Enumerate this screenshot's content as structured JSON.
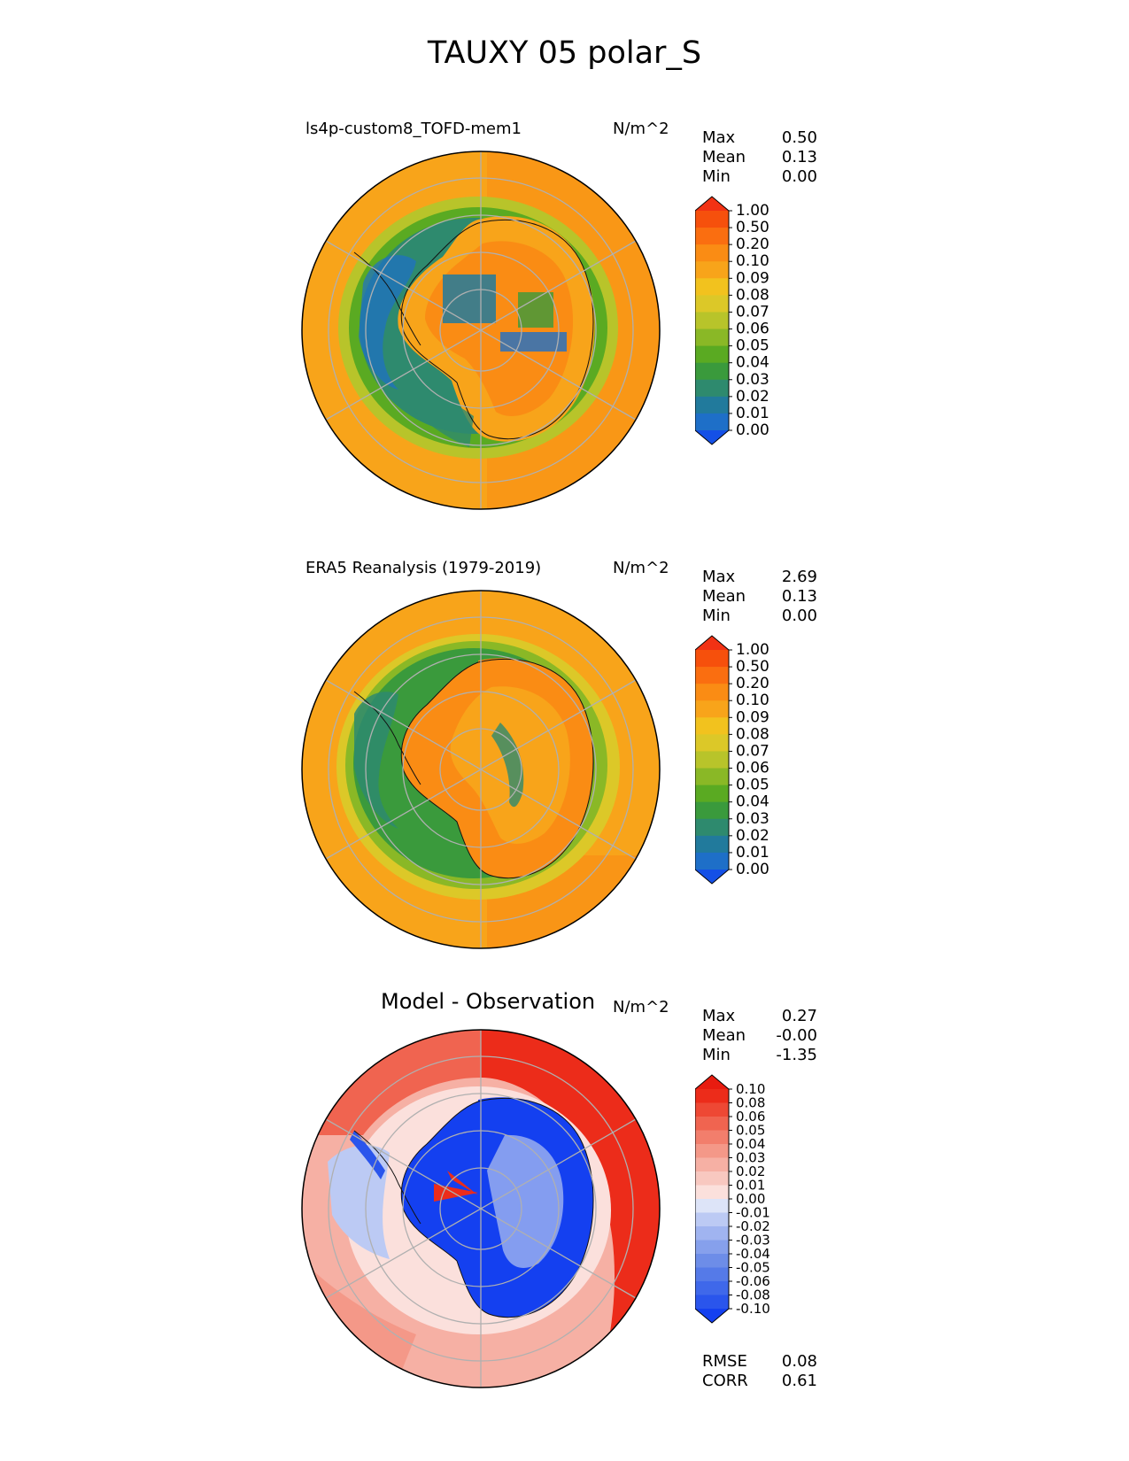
{
  "figure": {
    "title": "TAUXY 05 polar_S"
  },
  "panels": [
    {
      "title": "ls4p-custom8_TOFD-mem1",
      "units": "N/m^2",
      "stats": [
        {
          "label": "Max",
          "value": "0.50"
        },
        {
          "label": "Mean",
          "value": "0.13"
        },
        {
          "label": "Min",
          "value": "0.00"
        }
      ]
    },
    {
      "title": "ERA5 Reanalysis (1979-2019)",
      "units": "N/m^2",
      "stats": [
        {
          "label": "Max",
          "value": "2.69"
        },
        {
          "label": "Mean",
          "value": "0.13"
        },
        {
          "label": "Min",
          "value": "0.00"
        }
      ]
    },
    {
      "title": "Model - Observation",
      "units": "N/m^2",
      "stats": [
        {
          "label": "Max",
          "value": "0.27"
        },
        {
          "label": "Mean",
          "value": "-0.00"
        },
        {
          "label": "Min",
          "value": "-1.35"
        }
      ]
    }
  ],
  "metrics": [
    {
      "label": "RMSE",
      "value": "0.08"
    },
    {
      "label": "CORR",
      "value": "0.61"
    }
  ],
  "chart_data": [
    {
      "type": "heatmap",
      "projection": "south polar stereographic",
      "title": "ls4p-custom8_TOFD-mem1",
      "units": "N/m^2",
      "colorbar": {
        "levels": [
          "0.00",
          "0.01",
          "0.02",
          "0.03",
          "0.04",
          "0.05",
          "0.06",
          "0.07",
          "0.08",
          "0.09",
          "0.10",
          "0.20",
          "0.50",
          "1.00"
        ],
        "colors": [
          "#1450e6",
          "#1e6fc8",
          "#217a9c",
          "#2e8a6e",
          "#3a9a3c",
          "#5aaa22",
          "#8ab826",
          "#b8c42a",
          "#dcc828",
          "#f2c21e",
          "#f8a41a",
          "#fa8c14",
          "#fa6e10",
          "#f6500c",
          "#f23214"
        ]
      },
      "summary": {
        "max": 0.5,
        "mean": 0.13,
        "min": 0.0
      }
    },
    {
      "type": "heatmap",
      "projection": "south polar stereographic",
      "title": "ERA5 Reanalysis (1979-2019)",
      "units": "N/m^2",
      "colorbar": {
        "levels": [
          "0.00",
          "0.01",
          "0.02",
          "0.03",
          "0.04",
          "0.05",
          "0.06",
          "0.07",
          "0.08",
          "0.09",
          "0.10",
          "0.20",
          "0.50",
          "1.00"
        ],
        "colors": [
          "#1450e6",
          "#1e6fc8",
          "#217a9c",
          "#2e8a6e",
          "#3a9a3c",
          "#5aaa22",
          "#8ab826",
          "#b8c42a",
          "#dcc828",
          "#f2c21e",
          "#f8a41a",
          "#fa8c14",
          "#fa6e10",
          "#f6500c",
          "#f23214"
        ]
      },
      "summary": {
        "max": 2.69,
        "mean": 0.13,
        "min": 0.0
      }
    },
    {
      "type": "heatmap",
      "projection": "south polar stereographic",
      "title": "Model - Observation",
      "units": "N/m^2",
      "colorbar": {
        "levels": [
          "-0.10",
          "-0.08",
          "-0.06",
          "-0.05",
          "-0.04",
          "-0.03",
          "-0.02",
          "-0.01",
          "0.00",
          "0.01",
          "0.02",
          "0.03",
          "0.04",
          "0.05",
          "0.06",
          "0.08",
          "0.10"
        ],
        "colors": [
          "#1440f0",
          "#2a55ec",
          "#3f68ea",
          "#557ae8",
          "#6d8de8",
          "#86a0ec",
          "#a0b4f0",
          "#bccaf4",
          "#dde4f8",
          "#fbe0dc",
          "#f8c8c0",
          "#f6b0a4",
          "#f49888",
          "#f27e6c",
          "#f06450",
          "#ee4834",
          "#ec2c1a",
          "#e81c10"
        ]
      },
      "summary": {
        "max": 0.27,
        "mean": -0.0,
        "min": -1.35,
        "rmse": 0.08,
        "corr": 0.61
      }
    }
  ]
}
